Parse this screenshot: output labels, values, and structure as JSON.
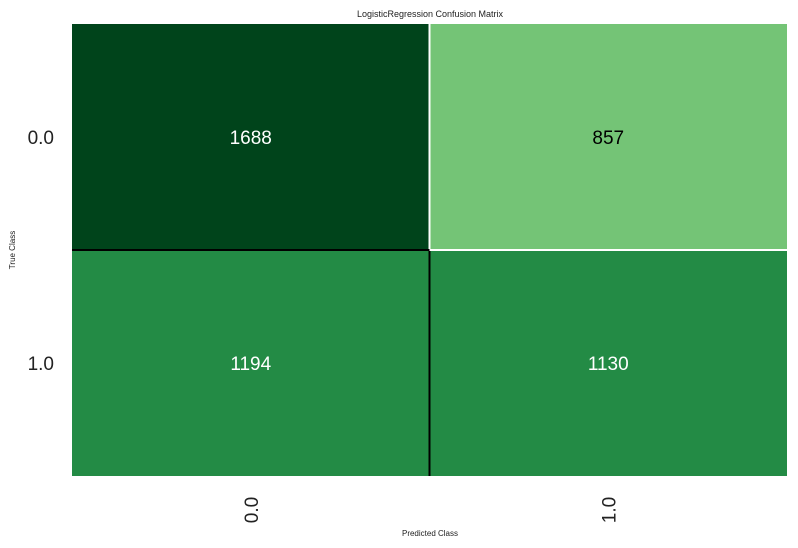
{
  "chart_data": {
    "type": "heatmap",
    "title": "LogisticRegression Confusion Matrix",
    "xlabel": "Predicted Class",
    "ylabel": "True Class",
    "x_categories": [
      "0.0",
      "1.0"
    ],
    "y_categories": [
      "0.0",
      "1.0"
    ],
    "values": [
      [
        1688,
        857
      ],
      [
        1194,
        1130
      ]
    ],
    "colormap": "Greens",
    "cell_colors": [
      [
        "#00441b",
        "#74c476"
      ],
      [
        "#238b45",
        "#238b45"
      ]
    ],
    "text_colors": [
      [
        "#ffffff",
        "#000000"
      ],
      [
        "#ffffff",
        "#ffffff"
      ]
    ],
    "grid": false
  }
}
